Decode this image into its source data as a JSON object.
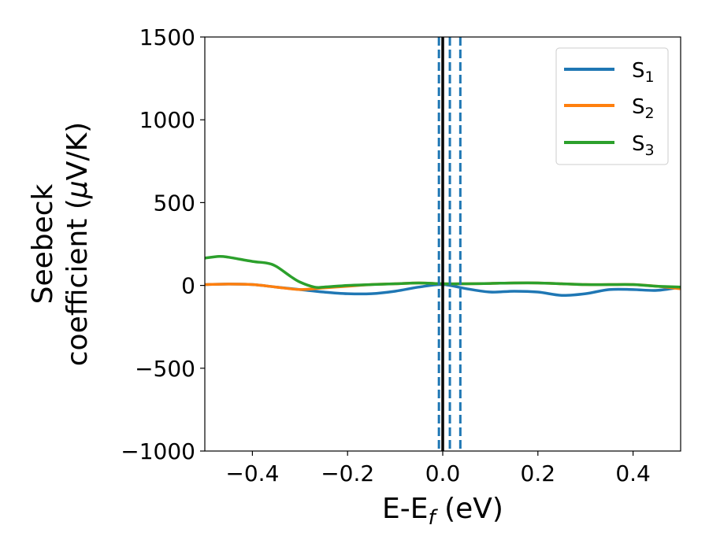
{
  "chart_data": {
    "type": "line",
    "xlabel": {
      "main": "E-E",
      "sub": "f",
      "unit": " (eV)"
    },
    "ylabel": {
      "line1": "Seebeck",
      "line2_prefix": "coefficient  (",
      "mu": "μ",
      "line2_suffix": "V/K)"
    },
    "xlim": [
      -0.5,
      0.5
    ],
    "ylim": [
      -1000,
      1500
    ],
    "xticks": [
      -0.4,
      -0.2,
      0.0,
      0.2,
      0.4
    ],
    "xtick_labels": [
      "−0.4",
      "−0.2",
      "0.0",
      "0.2",
      "0.4"
    ],
    "yticks": [
      -1000,
      -500,
      0,
      500,
      1000,
      1500
    ],
    "ytick_labels": [
      "−1000",
      "−500",
      "0",
      "500",
      "1000",
      "1500"
    ],
    "grid": false,
    "legend_position": "top-right",
    "series": [
      {
        "name": "S1",
        "label_main": "S",
        "label_sub": "1",
        "color": "#1f77b4",
        "x": [
          -0.5,
          -0.45,
          -0.4,
          -0.35,
          -0.3,
          -0.25,
          -0.2,
          -0.15,
          -0.1,
          -0.05,
          0.0,
          0.05,
          0.1,
          0.15,
          0.2,
          0.25,
          0.3,
          0.35,
          0.4,
          0.45,
          0.5
        ],
        "y": [
          5,
          8,
          5,
          -10,
          -25,
          -40,
          -50,
          -50,
          -35,
          -10,
          5,
          -20,
          -40,
          -35,
          -40,
          -60,
          -50,
          -25,
          -25,
          -30,
          -10
        ]
      },
      {
        "name": "S2",
        "label_main": "S",
        "label_sub": "2",
        "color": "#ff7f0e",
        "x": [
          -0.5,
          -0.45,
          -0.4,
          -0.35,
          -0.3,
          -0.25,
          -0.2,
          -0.15,
          -0.1,
          -0.05,
          0.0,
          0.05,
          0.1,
          0.15,
          0.2,
          0.25,
          0.3,
          0.35,
          0.4,
          0.45,
          0.5
        ],
        "y": [
          5,
          8,
          5,
          -10,
          -25,
          -15,
          -5,
          5,
          10,
          15,
          10,
          10,
          12,
          15,
          15,
          10,
          5,
          5,
          5,
          -5,
          -20
        ]
      },
      {
        "name": "S3",
        "label_main": "S",
        "label_sub": "3",
        "color": "#2ca02c",
        "x": [
          -0.5,
          -0.47,
          -0.45,
          -0.4,
          -0.37,
          -0.35,
          -0.32,
          -0.3,
          -0.27,
          -0.25,
          -0.2,
          -0.15,
          -0.1,
          -0.05,
          0.0,
          0.05,
          0.1,
          0.15,
          0.2,
          0.25,
          0.3,
          0.35,
          0.4,
          0.45,
          0.5
        ],
        "y": [
          165,
          175,
          170,
          145,
          135,
          115,
          55,
          20,
          -10,
          -10,
          0,
          5,
          10,
          15,
          10,
          10,
          12,
          15,
          15,
          10,
          5,
          5,
          5,
          -5,
          -10
        ]
      }
    ],
    "vlines": [
      {
        "x": 0.0,
        "color": "#000000",
        "style": "solid"
      },
      {
        "x": -0.008,
        "color": "#1f77b4",
        "style": "dashed"
      },
      {
        "x": 0.015,
        "color": "#1f77b4",
        "style": "dashed"
      },
      {
        "x": 0.037,
        "color": "#1f77b4",
        "style": "dashed"
      }
    ]
  }
}
